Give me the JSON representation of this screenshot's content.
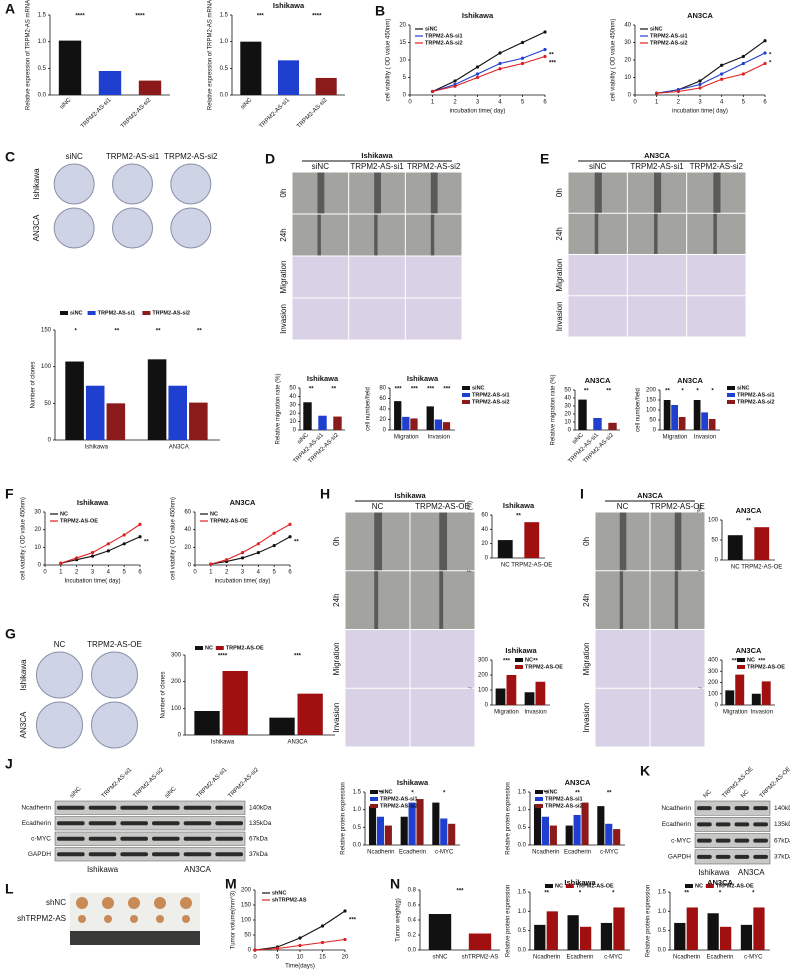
{
  "panel_letters": [
    "A",
    "B",
    "C",
    "D",
    "E",
    "F",
    "G",
    "H",
    "I",
    "J",
    "K",
    "L",
    "M",
    "N"
  ],
  "chart_data": [
    {
      "type": "bar",
      "ylabel": "Relative expression of TRPM2-AS mRNA",
      "categories": [
        "siNC",
        "TRPM2-AS-si1",
        "TRPM2-AS-si2"
      ],
      "values": [
        1.02,
        0.45,
        0.27
      ],
      "colors": [
        "#111111",
        "#1f3fd0",
        "#8b1a1a"
      ],
      "ylim": [
        0,
        1.5
      ],
      "yticks": [
        {
          "value": 0,
          "label": "0.0"
        },
        0.5,
        {
          "value": 1,
          "label": "1.0"
        },
        1.5
      ],
      "annotations": [
        "****",
        "****"
      ]
    },
    {
      "type": "bar",
      "title": "Ishikawa",
      "ylabel": "Relative expression of TRPM2-AS mRNA",
      "categories": [
        "siNC",
        "TRPM2-AS-si1",
        "TRPM2-AS-si2"
      ],
      "values": [
        1.0,
        0.65,
        0.32
      ],
      "colors": [
        "#111111",
        "#1f3fd0",
        "#8b1a1a"
      ],
      "ylim": [
        0,
        1.5
      ],
      "yticks": [
        {
          "value": 0,
          "label": "0.0"
        },
        0.5,
        {
          "value": 1,
          "label": "1.0"
        },
        1.5
      ],
      "annotations": [
        "***",
        "****"
      ]
    },
    {
      "type": "line",
      "title": "Ishikawa",
      "xlabel": "incubation time( day)",
      "ylabel": "cell viability ( OD value 450nm)",
      "x": [
        1,
        2,
        3,
        4,
        5,
        6
      ],
      "xlim": [
        0,
        6
      ],
      "xticks": [
        0,
        1,
        2,
        3,
        4,
        5,
        6
      ],
      "ylim": [
        0,
        20
      ],
      "yticks": [
        0,
        5,
        10,
        15,
        20
      ],
      "series": [
        {
          "name": "siNC",
          "color": "#111111",
          "values": [
            1,
            4,
            8,
            12,
            15,
            18
          ]
        },
        {
          "name": "TRPM2-AS-si1",
          "color": "#1f3fd0",
          "values": [
            1,
            3,
            6,
            9,
            10.5,
            13
          ]
        },
        {
          "name": "TRPM2-AS-si2",
          "color": "#e02020",
          "values": [
            1,
            2.5,
            5,
            7.5,
            9,
            11
          ]
        }
      ],
      "annotations": [
        "**",
        "***"
      ]
    },
    {
      "type": "line",
      "title": "AN3CA",
      "xlabel": "incubation time( day)",
      "ylabel": "cell viability ( OD value 450nm)",
      "x": [
        1,
        2,
        3,
        4,
        5,
        6
      ],
      "xlim": [
        0,
        6
      ],
      "xticks": [
        0,
        1,
        2,
        3,
        4,
        5,
        6
      ],
      "ylim": [
        0,
        40
      ],
      "yticks": [
        0,
        10,
        20,
        30,
        40
      ],
      "series": [
        {
          "name": "siNC",
          "color": "#111111",
          "values": [
            1,
            3,
            8,
            17,
            22,
            31
          ]
        },
        {
          "name": "TRPM2-AS-si1",
          "color": "#1f3fd0",
          "values": [
            1,
            3,
            6,
            12,
            18,
            24
          ]
        },
        {
          "name": "TRPM2-AS-si2",
          "color": "#e02020",
          "values": [
            1,
            2,
            4,
            9,
            12,
            18
          ]
        }
      ],
      "annotations": [
        "*",
        "*"
      ]
    },
    {
      "type": "bar",
      "ylabel": "Number of clones",
      "categories": [
        "Ishikawa",
        "AN3CA"
      ],
      "ylim": [
        0,
        150
      ],
      "yticks": [
        0,
        50,
        100,
        150
      ],
      "series": [
        {
          "name": "siNC",
          "color": "#111111",
          "values": [
            107,
            110
          ]
        },
        {
          "name": "TRPM2-AS-si1",
          "color": "#1f3fd0",
          "values": [
            74,
            74
          ]
        },
        {
          "name": "TRPM2-AS-si2",
          "color": "#8b1a1a",
          "values": [
            50,
            51
          ]
        }
      ],
      "annotations": [
        "*",
        "**",
        "**",
        "**"
      ]
    },
    {
      "type": "bar",
      "title": "Ishikawa",
      "ylabel": "Relative migration rate (%)",
      "categories": [
        "siNC",
        "TRPM2-AS-si1",
        "TRPM2-AS-si2"
      ],
      "values": [
        33,
        17,
        16
      ],
      "colors": [
        "#111111",
        "#1f3fd0",
        "#8b1a1a"
      ],
      "ylim": [
        0,
        50
      ],
      "yticks": [
        0,
        10,
        20,
        30,
        40,
        50
      ],
      "annotations": [
        "**",
        "**"
      ]
    },
    {
      "type": "bar",
      "title": "Ishikawa",
      "ylabel": "cell number/field",
      "categories": [
        "Migration",
        "Invasion"
      ],
      "ylim": [
        0,
        80
      ],
      "yticks": [
        0,
        20,
        40,
        60,
        80
      ],
      "series": [
        {
          "name": "siNC",
          "color": "#111111",
          "values": [
            55,
            45
          ]
        },
        {
          "name": "TRPM2-AS-si1",
          "color": "#1f3fd0",
          "values": [
            25,
            20
          ]
        },
        {
          "name": "TRPM2-AS-si2",
          "color": "#8b1a1a",
          "values": [
            22,
            15
          ]
        }
      ],
      "annotations": [
        "***",
        "***",
        "***",
        "***"
      ]
    },
    {
      "type": "bar",
      "title": "AN3CA",
      "ylabel": "Relative migration rate (%)",
      "categories": [
        "siNC",
        "TRPM2-AS-si1",
        "TRPM2-AS-si2"
      ],
      "values": [
        38,
        15,
        9
      ],
      "colors": [
        "#111111",
        "#1f3fd0",
        "#8b1a1a"
      ],
      "ylim": [
        0,
        50
      ],
      "yticks": [
        0,
        10,
        20,
        30,
        40,
        50
      ],
      "annotations": [
        "**",
        "**"
      ]
    },
    {
      "type": "bar",
      "title": "AN3CA",
      "ylabel": "cell number/field",
      "categories": [
        "Migration",
        "Invasion"
      ],
      "ylim": [
        0,
        200
      ],
      "yticks": [
        0,
        50,
        100,
        150,
        200
      ],
      "series": [
        {
          "name": "siNC",
          "color": "#111111",
          "values": [
            150,
            150
          ]
        },
        {
          "name": "TRPM2-AS-si1",
          "color": "#1f3fd0",
          "values": [
            125,
            88
          ]
        },
        {
          "name": "TRPM2-AS-si2",
          "color": "#8b1a1a",
          "values": [
            65,
            55
          ]
        }
      ],
      "annotations": [
        "**",
        "*",
        "*",
        "*"
      ]
    },
    {
      "type": "line",
      "title": "Ishikawa",
      "xlabel": "Incubation time( day)",
      "ylabel": "cell viability ( OD value 450nm)",
      "x": [
        1,
        2,
        3,
        4,
        5,
        6
      ],
      "xlim": [
        0,
        6
      ],
      "xticks": [
        0,
        1,
        2,
        3,
        4,
        5,
        6
      ],
      "ylim": [
        0,
        30
      ],
      "yticks": [
        0,
        10,
        20,
        30
      ],
      "series": [
        {
          "name": "NC",
          "color": "#111111",
          "values": [
            1,
            3,
            5,
            8,
            12,
            16
          ]
        },
        {
          "name": "TRPM2-AS-OE",
          "color": "#e02020",
          "values": [
            1,
            4,
            7,
            12,
            17,
            23
          ]
        }
      ],
      "annotations": [
        "**"
      ]
    },
    {
      "type": "line",
      "title": "AN3CA",
      "xlabel": "incubation time( day)",
      "ylabel": "cell viability ( OD value 450nm)",
      "x": [
        1,
        2,
        3,
        4,
        5,
        6
      ],
      "xlim": [
        0,
        6
      ],
      "xticks": [
        0,
        1,
        2,
        3,
        4,
        5,
        6
      ],
      "ylim": [
        0,
        60
      ],
      "yticks": [
        0,
        20,
        40,
        60
      ],
      "series": [
        {
          "name": "NC",
          "color": "#111111",
          "values": [
            1,
            4,
            8,
            14,
            22,
            32
          ]
        },
        {
          "name": "TRPM2-AS-OE",
          "color": "#e02020",
          "values": [
            1,
            6,
            14,
            24,
            36,
            46
          ]
        }
      ],
      "annotations": [
        "**"
      ]
    },
    {
      "type": "bar",
      "ylabel": "Number of clones",
      "categories": [
        "Ishikawa",
        "AN3CA"
      ],
      "ylim": [
        0,
        300
      ],
      "yticks": [
        0,
        100,
        200,
        300
      ],
      "series": [
        {
          "name": "NC",
          "color": "#111111",
          "values": [
            90,
            65
          ]
        },
        {
          "name": "TRPM2-AS-OE",
          "color": "#a01010",
          "values": [
            240,
            155
          ]
        }
      ],
      "annotations": [
        "****",
        "***"
      ]
    },
    {
      "type": "bar",
      "title": "Ishikawa",
      "ylabel": "Relative migration rate (%)",
      "categories": [
        "NC",
        "TRPM2-AS-OE"
      ],
      "values": [
        25,
        50
      ],
      "colors": [
        "#111111",
        "#a01010"
      ],
      "ylim": [
        0,
        60
      ],
      "yticks": [
        0,
        20,
        40,
        60
      ],
      "annotations": [
        "**"
      ]
    },
    {
      "type": "bar",
      "title": "Ishikawa",
      "ylabel": "cell number/field",
      "categories": [
        "Migration",
        "Invasion"
      ],
      "ylim": [
        0,
        300
      ],
      "yticks": [
        0,
        100,
        200,
        300
      ],
      "series": [
        {
          "name": "NC",
          "color": "#111111",
          "values": [
            110,
            85
          ]
        },
        {
          "name": "TRPM2-AS-OE",
          "color": "#a01010",
          "values": [
            200,
            155
          ]
        }
      ],
      "annotations": [
        "***",
        "**"
      ]
    },
    {
      "type": "bar",
      "title": "AN3CA",
      "ylabel": "Relative migration rate (%)",
      "categories": [
        "NC",
        "TRPM2-AS-OE"
      ],
      "values": [
        62,
        82
      ],
      "colors": [
        "#111111",
        "#a01010"
      ],
      "ylim": [
        0,
        100
      ],
      "yticks": [
        0,
        50,
        100
      ],
      "annotations": [
        "**"
      ]
    },
    {
      "type": "bar",
      "title": "AN3CA",
      "ylabel": "cell number/field",
      "categories": [
        "Migration",
        "Invasion"
      ],
      "ylim": [
        0,
        400
      ],
      "yticks": [
        0,
        100,
        200,
        300,
        400
      ],
      "series": [
        {
          "name": "NC",
          "color": "#111111",
          "values": [
            130,
            100
          ]
        },
        {
          "name": "TRPM2-AS-OE",
          "color": "#a01010",
          "values": [
            270,
            210
          ]
        }
      ],
      "annotations": [
        "***",
        "***"
      ]
    },
    {
      "type": "bar",
      "title": "Ishikawa",
      "ylabel": "Relative protein expression",
      "categories": [
        "Ncadherin",
        "Ecadherin",
        "c-MYC"
      ],
      "ylim": [
        0,
        1.5
      ],
      "yticks": [
        {
          "value": 0,
          "label": "0.0"
        },
        0.5,
        {
          "value": 1,
          "label": "1.0"
        },
        1.5
      ],
      "series": [
        {
          "name": "siNC",
          "color": "#111111",
          "values": [
            1.1,
            0.8,
            1.2
          ]
        },
        {
          "name": "TRPM2-AS-si1",
          "color": "#1f3fd0",
          "values": [
            0.8,
            1.2,
            0.75
          ]
        },
        {
          "name": "TRPM2-AS-si2",
          "color": "#8b1a1a",
          "values": [
            0.55,
            1.3,
            0.6
          ]
        }
      ],
      "annotations": [
        "**",
        "*",
        "*"
      ]
    },
    {
      "type": "bar",
      "title": "AN3CA",
      "ylabel": "Relative protein expression",
      "categories": [
        "Ncadherin",
        "Ecadherin",
        "c-MYC"
      ],
      "ylim": [
        0,
        1.5
      ],
      "yticks": [
        {
          "value": 0,
          "label": "0.0"
        },
        0.5,
        {
          "value": 1,
          "label": "1.0"
        },
        1.5
      ],
      "series": [
        {
          "name": "siNC",
          "color": "#111111",
          "values": [
            1.15,
            0.55,
            1.1
          ]
        },
        {
          "name": "TRPM2-AS-si1",
          "color": "#1f3fd0",
          "values": [
            0.8,
            0.85,
            0.6
          ]
        },
        {
          "name": "TRPM2-AS-si2",
          "color": "#8b1a1a",
          "values": [
            0.55,
            1.2,
            0.45
          ]
        }
      ],
      "annotations": [
        "**",
        "**",
        "**"
      ]
    },
    {
      "type": "line",
      "xlabel": "Time(days)",
      "ylabel": "Tumor volume(mm^3)",
      "x": [
        0,
        5,
        10,
        15,
        20
      ],
      "xlim": [
        0,
        20
      ],
      "xticks": [
        0,
        5,
        10,
        15,
        20
      ],
      "ylim": [
        0,
        200
      ],
      "yticks": [
        0,
        50,
        100,
        150,
        200
      ],
      "series": [
        {
          "name": "shNC",
          "color": "#111111",
          "values": [
            0,
            10,
            40,
            80,
            130
          ]
        },
        {
          "name": "shTRPM2-AS",
          "color": "#e02020",
          "values": [
            0,
            5,
            15,
            25,
            35
          ]
        }
      ],
      "annotations": [
        "***"
      ]
    },
    {
      "type": "bar",
      "ylabel": "Tumor weight(g)",
      "categories": [
        "shNC",
        "shTRPM2-AS"
      ],
      "values": [
        0.48,
        0.22
      ],
      "colors": [
        "#111111",
        "#a01010"
      ],
      "ylim": [
        0,
        0.8
      ],
      "yticks": [
        {
          "value": 0,
          "label": "0.0"
        },
        0.2,
        0.4,
        0.6,
        0.8
      ],
      "annotations": [
        "***"
      ]
    },
    {
      "type": "bar",
      "title": "Ishikawa",
      "ylabel": "Relative protein expression",
      "categories": [
        "Ncadherin",
        "Ecadherin",
        "c-MYC"
      ],
      "ylim": [
        0,
        1.5
      ],
      "yticks": [
        {
          "value": 0,
          "label": "0.0"
        },
        0.5,
        {
          "value": 1,
          "label": "1.0"
        },
        1.5
      ],
      "series": [
        {
          "name": "NC",
          "color": "#111111",
          "values": [
            0.65,
            0.9,
            0.7
          ]
        },
        {
          "name": "TRPM2-AS-OE",
          "color": "#a01010",
          "values": [
            1.0,
            0.6,
            1.1
          ]
        }
      ],
      "annotations": [
        "**",
        "*",
        "*"
      ]
    },
    {
      "type": "bar",
      "title": "AN3CA",
      "ylabel": "Relative protein expression",
      "categories": [
        "Ncadherin",
        "Ecadherin",
        "c-MYC"
      ],
      "ylim": [
        0,
        1.5
      ],
      "yticks": [
        {
          "value": 0,
          "label": "0.0"
        },
        0.5,
        {
          "value": 1,
          "label": "1.0"
        },
        1.5
      ],
      "series": [
        {
          "name": "NC",
          "color": "#111111",
          "values": [
            0.7,
            0.95,
            0.65
          ]
        },
        {
          "name": "TRPM2-AS-OE",
          "color": "#a01010",
          "values": [
            1.1,
            0.6,
            1.1
          ]
        }
      ],
      "annotations": [
        "**",
        "*",
        "*"
      ]
    }
  ],
  "images": [
    {
      "columns": [
        "siNC",
        "TRPM2-AS-si1",
        "TRPM2-AS-si2"
      ],
      "rows": [
        "Ishikawa",
        "AN3CA"
      ]
    },
    {
      "title": "Ishikawa",
      "columns": [
        "siNC",
        "TRPM2-AS-si1",
        "TRPM2-AS-si2"
      ],
      "rows": [
        "0h",
        "24h",
        "Migration",
        "Invasion"
      ]
    },
    {
      "title": "AN3CA",
      "columns": [
        "siNC",
        "TRPM2-AS-si1",
        "TRPM2-AS-si2"
      ],
      "rows": [
        "0h",
        "24h",
        "Migration",
        "Invasion"
      ]
    },
    {
      "columns": [
        "NC",
        "TRPM2-AS-OE"
      ],
      "rows": [
        "Ishikawa",
        "AN3CA"
      ]
    },
    {
      "title": "Ishikawa",
      "columns": [
        "NC",
        "TRPM2-AS-OE"
      ],
      "rows": [
        "0h",
        "24h",
        "Migration",
        "Invasion"
      ]
    },
    {
      "title": "AN3CA",
      "columns": [
        "NC",
        "TRPM2-AS-OE"
      ],
      "rows": [
        "0h",
        "24h",
        "Migration",
        "Invasion"
      ]
    },
    {
      "rows": [
        "shNC",
        "shTRPM2-AS"
      ]
    }
  ],
  "blots": [
    {
      "lanes": [
        "siNC",
        "TRPM2-AS-si1",
        "TRPM2-AS-si2",
        "siNC",
        "TRPM2-AS-si1",
        "TRPM2-AS-si2"
      ],
      "proteins": [
        "Ncadherin",
        "Ecadherin",
        "c-MYC",
        "GAPDH"
      ],
      "sizes": [
        "140kDa",
        "135kDa",
        "67kDa",
        "37kDa"
      ],
      "groups": [
        "Ishikawa",
        "AN3CA"
      ]
    },
    {
      "lanes": [
        "NC",
        "TRPM2-AS-OE",
        "NC",
        "TRPM2-AS-OE"
      ],
      "proteins": [
        "Ncadherin",
        "Ecadherin",
        "c-MYC",
        "GAPDH"
      ],
      "sizes": [
        "140kDa",
        "135kDa",
        "67kDa",
        "37kDa"
      ],
      "groups": [
        "Ishikawa",
        "AN3CA"
      ]
    }
  ]
}
